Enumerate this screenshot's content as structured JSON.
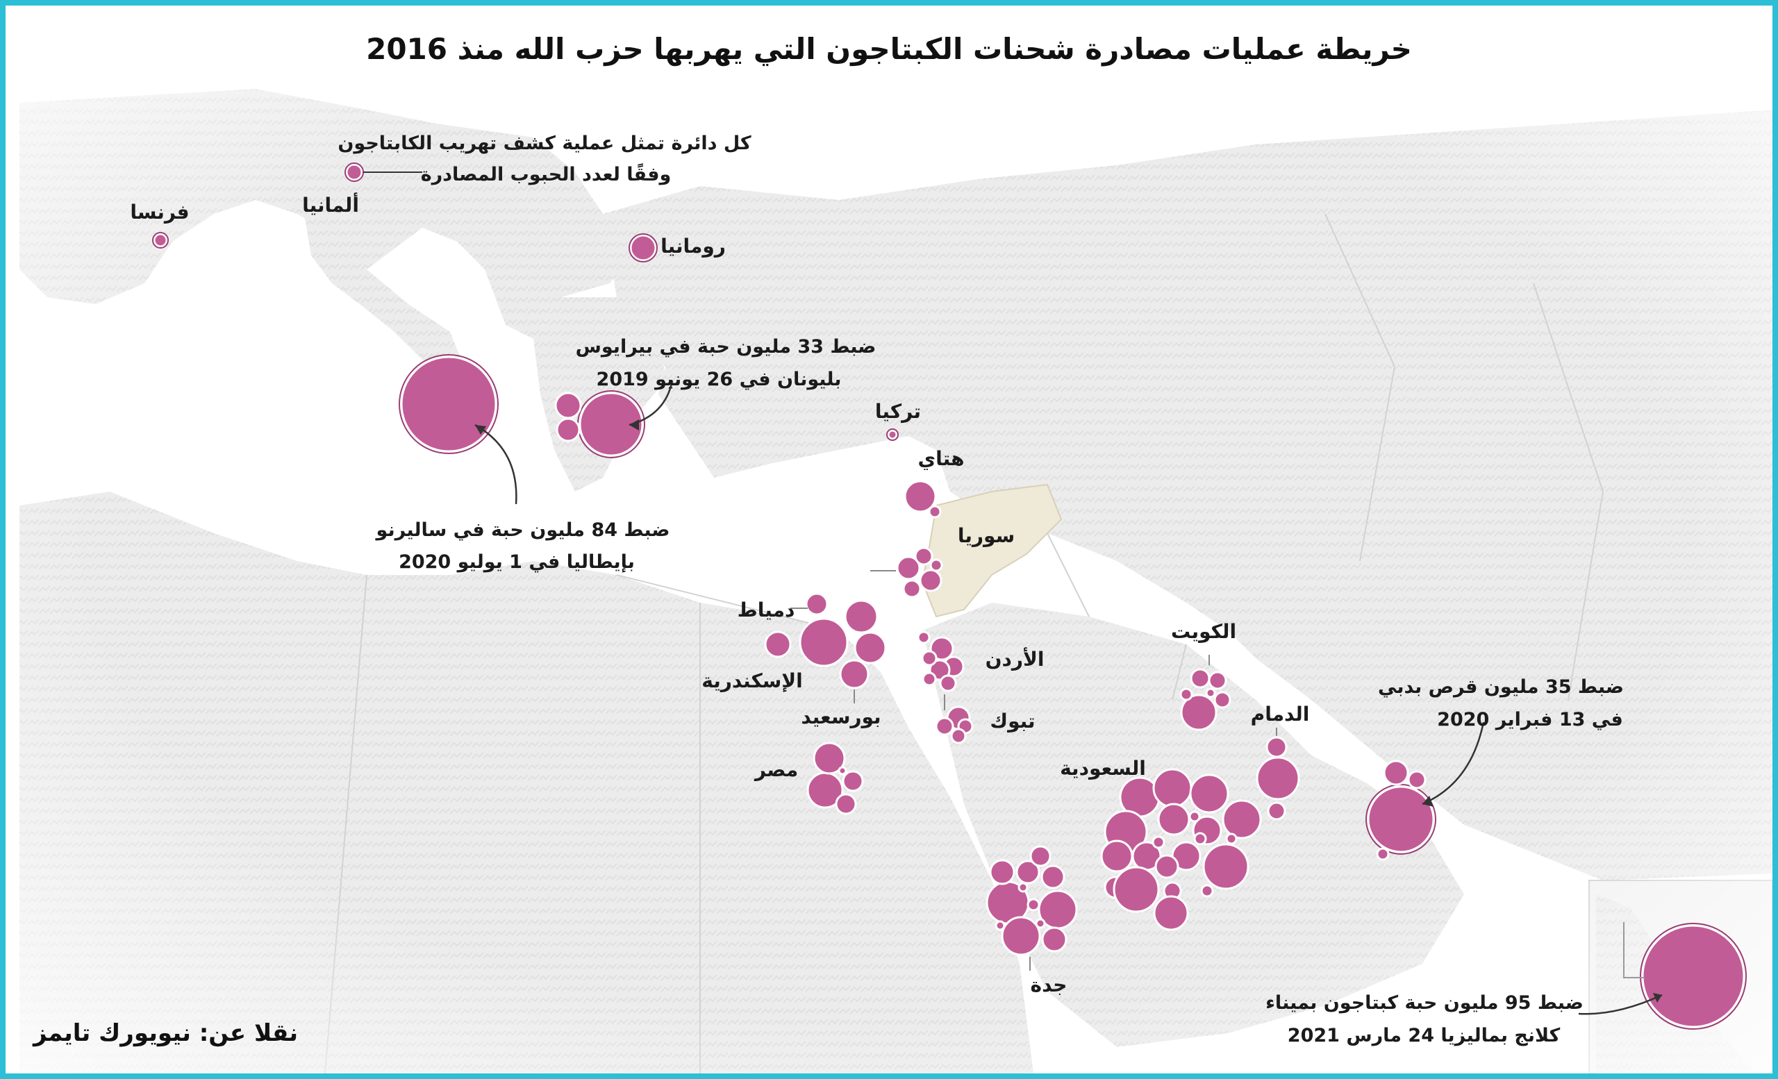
{
  "title": "خريطة عمليات مصادرة شحنات الكبتاجون التي يهربها حزب الله منذ 2016",
  "source": "نقلا عن: نيويورك تايمز",
  "colors": {
    "circle_fill": "#c25c96",
    "circle_outline": "#9a3f73",
    "syria_fill": "#efe9d8",
    "land": "#ececec",
    "sea": "#ffffff",
    "frame": "#2dbfd6"
  },
  "legend_note": {
    "line1": "كل دائرة تمثل عملية كشف تهريب الكابتاجون",
    "line2": "وفقًا لعدد الحبوب المصادرة"
  },
  "places": {
    "france": "فرنسا",
    "germany": "ألمانيا",
    "romania": "رومانيا",
    "turkey": "تركيا",
    "hatay": "هتاي",
    "syria": "سوريا",
    "damietta": "دمياط",
    "alexandria": "الإسكندرية",
    "port_said": "بورسعيد",
    "jordan": "الأردن",
    "tabuk": "تبوك",
    "egypt": "مصر",
    "kuwait": "الكويت",
    "dammam": "الدمام",
    "saudi": "السعودية",
    "jeddah": "جدة"
  },
  "annotations": {
    "salerno": {
      "line1": "ضبط 84 مليون حبة في ساليرنو",
      "line2": "بإيطاليا في 1 يوليو 2020"
    },
    "piraeus": {
      "line1": "ضبط 33 مليون حبة في بيرايوس",
      "line2": "بليونان في 26 يونيو 2019"
    },
    "dubai": {
      "line1": "ضبط 35 مليون قرص بدبي",
      "line2": "في 13 فبراير 2020"
    },
    "klang": {
      "line1": "ضبط 95 مليون حبة كبتاجون بميناء",
      "line2": "كلانج بماليزيا 24 مارس 2021"
    }
  },
  "map_data": {
    "seizure_sizes_million_pills": {
      "salerno": 84,
      "piraeus": 33,
      "dubai": 35,
      "klang": 95
    }
  }
}
